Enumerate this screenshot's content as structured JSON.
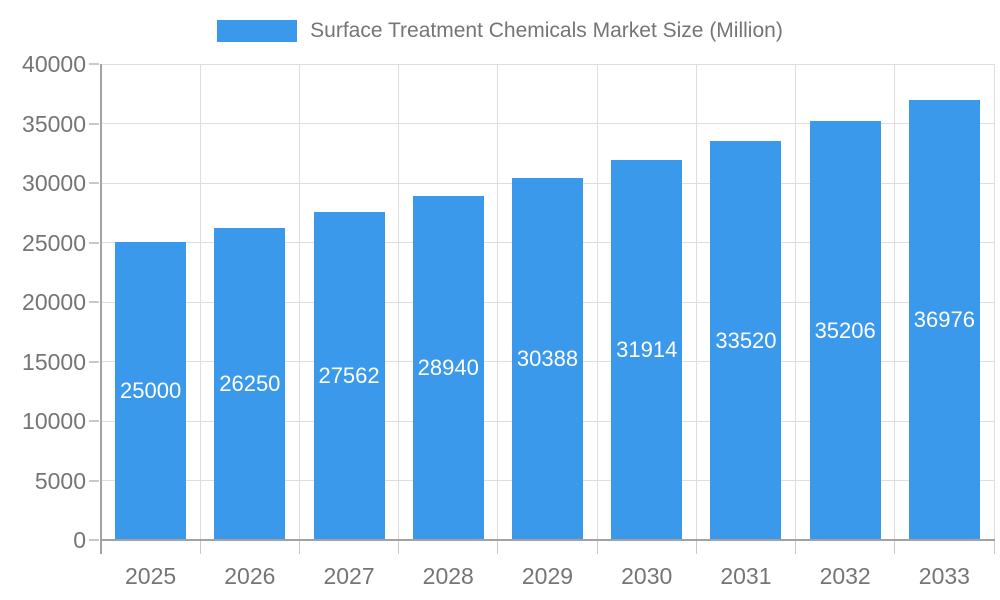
{
  "legend": {
    "label": "Surface Treatment Chemicals Market Size (Million)"
  },
  "chart_data": {
    "type": "bar",
    "title": "Surface Treatment Chemicals Market Size (Million)",
    "categories": [
      "2025",
      "2026",
      "2027",
      "2028",
      "2029",
      "2030",
      "2031",
      "2032",
      "2033"
    ],
    "values": [
      25000,
      26250,
      27562,
      28940,
      30388,
      31914,
      33520,
      35206,
      36976
    ],
    "xlabel": "",
    "ylabel": "",
    "ylim": [
      0,
      40000
    ],
    "ytick_interval": 5000,
    "ytick_labels": [
      "0",
      "5000",
      "10000",
      "15000",
      "20000",
      "25000",
      "30000",
      "35000",
      "40000"
    ],
    "grid": true,
    "legend_position": "top",
    "bar_label_position": "center"
  },
  "colors": {
    "bar": "#3B99EC",
    "bar_label": "#FFFFFF",
    "axis_line": "#A2A2A2",
    "gridline": "#DEDEDE",
    "tick": "#C9C9C9",
    "axis_text": "#757575",
    "legend_text": "#757575",
    "background": "#FFFFFF"
  }
}
